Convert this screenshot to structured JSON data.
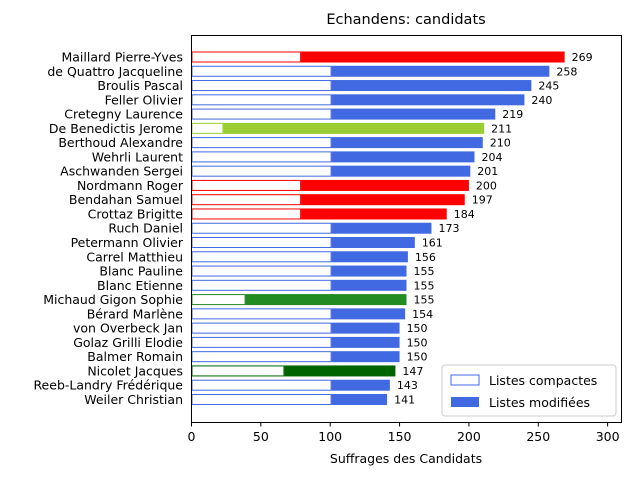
{
  "chart_data": {
    "type": "bar",
    "orientation": "horizontal",
    "stacked": true,
    "title": "Echandens: candidats",
    "xlabel": "Suffrages des Candidats",
    "ylabel": "",
    "xlim": [
      0,
      310
    ],
    "xticks": [
      0,
      50,
      100,
      150,
      200,
      250,
      300
    ],
    "grid": false,
    "legend_position": "lower right",
    "series": [
      {
        "name": "Listes compactes",
        "style": "outline"
      },
      {
        "name": "Listes modifiées",
        "style": "filled"
      }
    ],
    "candidates": [
      {
        "name": "Maillard Pierre-Yves",
        "compactes": 79,
        "total": 269,
        "color": "#ff0000"
      },
      {
        "name": "de Quattro Jacqueline",
        "compactes": 101,
        "total": 258,
        "color": "#4169e1"
      },
      {
        "name": "Broulis Pascal",
        "compactes": 101,
        "total": 245,
        "color": "#4169e1"
      },
      {
        "name": "Feller Olivier",
        "compactes": 101,
        "total": 240,
        "color": "#4169e1"
      },
      {
        "name": "Cretegny Laurence",
        "compactes": 101,
        "total": 219,
        "color": "#4169e1"
      },
      {
        "name": "De Benedictis Jerome",
        "compactes": 23,
        "total": 211,
        "color": "#9acd32"
      },
      {
        "name": "Berthoud Alexandre",
        "compactes": 101,
        "total": 210,
        "color": "#4169e1"
      },
      {
        "name": "Wehrli Laurent",
        "compactes": 101,
        "total": 204,
        "color": "#4169e1"
      },
      {
        "name": "Aschwanden Sergei",
        "compactes": 101,
        "total": 201,
        "color": "#4169e1"
      },
      {
        "name": "Nordmann Roger",
        "compactes": 79,
        "total": 200,
        "color": "#ff0000"
      },
      {
        "name": "Bendahan Samuel",
        "compactes": 79,
        "total": 197,
        "color": "#ff0000"
      },
      {
        "name": "Crottaz Brigitte",
        "compactes": 79,
        "total": 184,
        "color": "#ff0000"
      },
      {
        "name": "Ruch Daniel",
        "compactes": 101,
        "total": 173,
        "color": "#4169e1"
      },
      {
        "name": "Petermann Olivier",
        "compactes": 101,
        "total": 161,
        "color": "#4169e1"
      },
      {
        "name": "Carrel Matthieu",
        "compactes": 101,
        "total": 156,
        "color": "#4169e1"
      },
      {
        "name": "Blanc Pauline",
        "compactes": 101,
        "total": 155,
        "color": "#4169e1"
      },
      {
        "name": "Blanc Etienne",
        "compactes": 101,
        "total": 155,
        "color": "#4169e1"
      },
      {
        "name": "Michaud Gigon Sophie",
        "compactes": 39,
        "total": 155,
        "color": "#228b22"
      },
      {
        "name": "Bérard Marlène",
        "compactes": 101,
        "total": 154,
        "color": "#4169e1"
      },
      {
        "name": "von Overbeck Jan",
        "compactes": 101,
        "total": 150,
        "color": "#4169e1"
      },
      {
        "name": "Golaz Grilli Elodie",
        "compactes": 101,
        "total": 150,
        "color": "#4169e1"
      },
      {
        "name": "Balmer Romain",
        "compactes": 101,
        "total": 150,
        "color": "#4169e1"
      },
      {
        "name": "Nicolet Jacques",
        "compactes": 67,
        "total": 147,
        "color": "#006400"
      },
      {
        "name": "Reeb-Landry Frédérique",
        "compactes": 101,
        "total": 143,
        "color": "#4169e1"
      },
      {
        "name": "Weiler Christian",
        "compactes": 101,
        "total": 141,
        "color": "#4169e1"
      }
    ]
  }
}
